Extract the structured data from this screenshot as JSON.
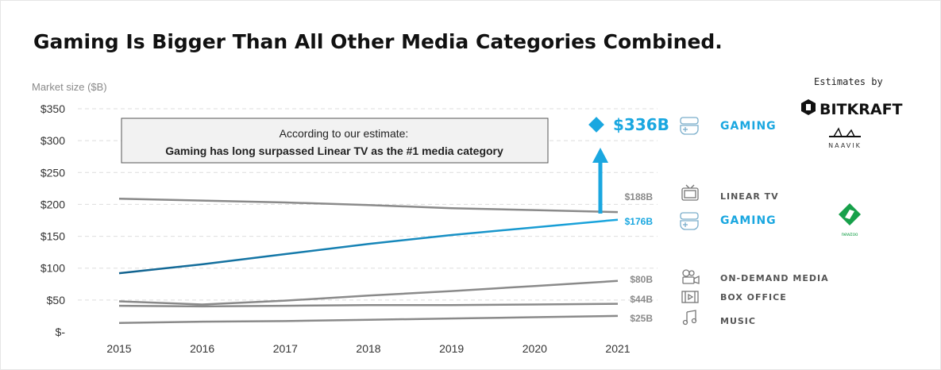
{
  "header": {
    "title": "Gaming Is Bigger Than All Other Media Categories Combined."
  },
  "annotation": {
    "line1": "According to our estimate:",
    "line2": "Gaming has long surpassed Linear TV as the #1 media category"
  },
  "highlight": {
    "value_label": "$336B",
    "category": "GAMING",
    "value": 336
  },
  "sources": {
    "estimates_by": "Estimates by",
    "bitkraft": "BITKRAFT",
    "naavik": "NAAVIK",
    "newzoo": "newzoo"
  },
  "chart_data": {
    "type": "line",
    "ylabel": "Market size ($B)",
    "x": [
      2015,
      2016,
      2017,
      2018,
      2019,
      2020,
      2021
    ],
    "x_tick_labels": [
      "2015",
      "2016",
      "2017",
      "2018",
      "2019",
      "2020",
      "2021"
    ],
    "ylim": [
      0,
      350
    ],
    "y_ticks": [
      0,
      50,
      100,
      150,
      200,
      250,
      300,
      350
    ],
    "y_tick_labels": [
      "$-",
      "$50",
      "$100",
      "$150",
      "$200",
      "$250",
      "$300",
      "$350"
    ],
    "grid": true,
    "series": [
      {
        "name": "LINEAR TV",
        "end_label": "$188B",
        "values": [
          209,
          206,
          203,
          199,
          194,
          191,
          188
        ],
        "color": "#8a8a8a",
        "icon": "tv-icon"
      },
      {
        "name": "GAMING",
        "end_label": "$176B",
        "values": [
          92,
          106,
          122,
          138,
          152,
          164,
          176
        ],
        "color": "#1aa7e0",
        "icon": "gamepad-icon"
      },
      {
        "name": "ON-DEMAND MEDIA",
        "end_label": "$80B",
        "values": [
          48,
          43,
          49,
          57,
          64,
          72,
          80
        ],
        "color": "#8a8a8a",
        "icon": "camera-icon"
      },
      {
        "name": "BOX OFFICE",
        "end_label": "$44B",
        "values": [
          41,
          40,
          41,
          42,
          42,
          43,
          44
        ],
        "color": "#8a8a8a",
        "icon": "film-icon"
      },
      {
        "name": "MUSIC",
        "end_label": "$25B",
        "values": [
          14,
          16,
          17,
          19,
          21,
          23,
          25
        ],
        "color": "#8a8a8a",
        "icon": "music-note-icon"
      }
    ]
  }
}
